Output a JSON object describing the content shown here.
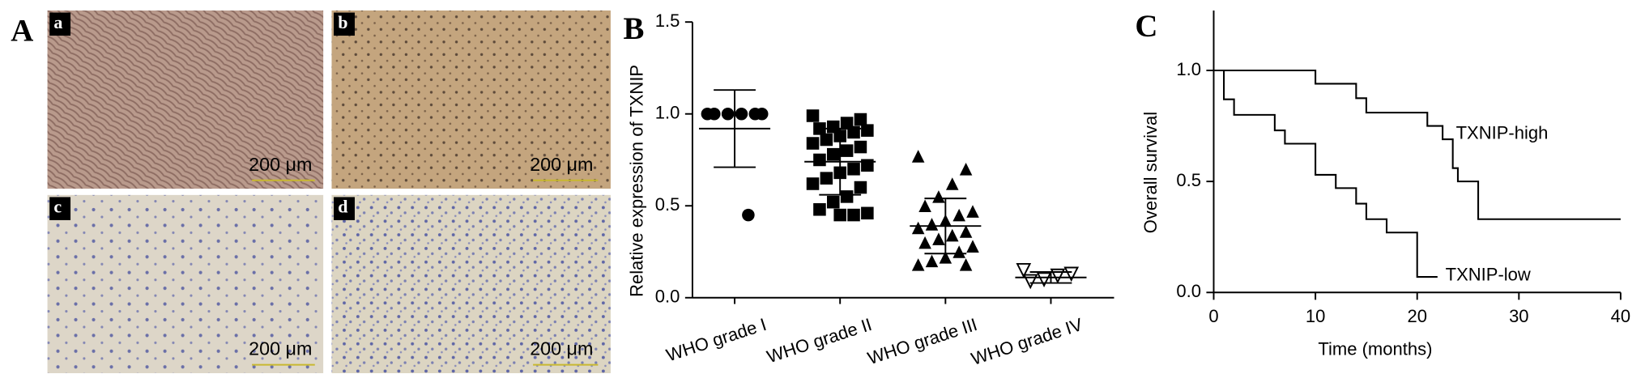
{
  "panel_labels": [
    "A",
    "B",
    "C"
  ],
  "panel_a": {
    "subpanels": [
      {
        "label": "a",
        "scale": "200 μm"
      },
      {
        "label": "b",
        "scale": "200 μm"
      },
      {
        "label": "c",
        "scale": "200 μm"
      },
      {
        "label": "d",
        "scale": "200 μm"
      }
    ]
  },
  "chart_data": [
    {
      "type": "scatter",
      "ylabel": "Relative expression of TXNIP",
      "categories": [
        "WHO grade I",
        "WHO grade II",
        "WHO grade III",
        "WHO grade IV"
      ],
      "markers": [
        "circle",
        "square",
        "triangle",
        "triangle-down"
      ],
      "color": "#000000",
      "points": [
        [
          1.0,
          1.0,
          1.0,
          1.0,
          1.0,
          1.0,
          0.45
        ],
        [
          0.99,
          0.97,
          0.95,
          0.93,
          0.92,
          0.91,
          0.9,
          0.88,
          0.86,
          0.84,
          0.82,
          0.8,
          0.78,
          0.75,
          0.72,
          0.7,
          0.68,
          0.65,
          0.62,
          0.6,
          0.55,
          0.52,
          0.48,
          0.46,
          0.45,
          0.45
        ],
        [
          0.77,
          0.7,
          0.62,
          0.55,
          0.5,
          0.47,
          0.45,
          0.42,
          0.4,
          0.38,
          0.36,
          0.34,
          0.32,
          0.3,
          0.28,
          0.25,
          0.22,
          0.2,
          0.18,
          0.18
        ],
        [
          0.15,
          0.13,
          0.12,
          0.1,
          0.09
        ]
      ],
      "means": [
        0.92,
        0.74,
        0.39,
        0.11
      ],
      "sds": [
        0.21,
        0.18,
        0.15,
        0.03
      ],
      "ylim": [
        0,
        1.5
      ],
      "yticks": [
        {
          "value": 0,
          "label": "0.0"
        },
        0.5,
        {
          "value": 1,
          "label": "1.0"
        },
        1.5
      ]
    },
    {
      "type": "line",
      "step": true,
      "xlabel": "Time (months)",
      "ylabel": "Overall survival",
      "xlim": [
        0,
        40
      ],
      "xticks": [
        0,
        10,
        20,
        30,
        40
      ],
      "ylim": [
        0,
        1.27
      ],
      "yticks": [
        {
          "value": 0,
          "label": "0.0"
        },
        0.5,
        {
          "value": 1,
          "label": "1.0"
        }
      ],
      "series": [
        {
          "name": "TXNIP-high",
          "color": "#000000",
          "x": [
            0,
            10,
            14,
            15,
            21,
            22.5,
            23.5,
            24,
            26,
            40
          ],
          "values": [
            1,
            0.94,
            0.875,
            0.81,
            0.75,
            0.69,
            0.56,
            0.5,
            0.33,
            0.33
          ]
        },
        {
          "name": "TXNIP-low",
          "color": "#000000",
          "x": [
            0,
            1,
            2,
            6,
            7,
            10,
            12,
            14,
            15,
            17,
            20,
            22
          ],
          "values": [
            1,
            0.87,
            0.8,
            0.73,
            0.67,
            0.53,
            0.47,
            0.4,
            0.33,
            0.27,
            0.07,
            0.07
          ]
        }
      ]
    }
  ]
}
